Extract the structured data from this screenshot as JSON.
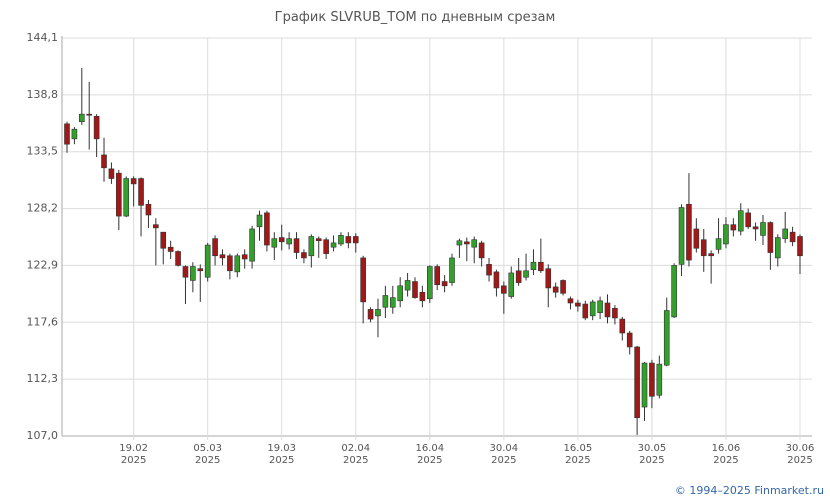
{
  "chart_data": {
    "type": "candlestick",
    "title": "График SLVRUB_TOM по дневным срезам",
    "credit": "© 1994–2025 Finmarket.ru",
    "categories": [
      null,
      null,
      null,
      null,
      null,
      null,
      null,
      null,
      null,
      "19.02\n2025",
      null,
      null,
      null,
      null,
      null,
      null,
      null,
      null,
      null,
      "05.03\n2025",
      null,
      null,
      null,
      null,
      null,
      null,
      null,
      null,
      null,
      "19.03\n2025",
      null,
      null,
      null,
      null,
      null,
      null,
      null,
      null,
      null,
      "02.04\n2025",
      null,
      null,
      null,
      null,
      null,
      null,
      null,
      null,
      null,
      "16.04\n2025",
      null,
      null,
      null,
      null,
      null,
      null,
      null,
      null,
      null,
      "30.04\n2025",
      null,
      null,
      null,
      null,
      null,
      null,
      null,
      null,
      null,
      "16.05\n2025",
      null,
      null,
      null,
      null,
      null,
      null,
      null,
      null,
      null,
      "30.05\n2025",
      null,
      null,
      null,
      null,
      null,
      null,
      null,
      null,
      null,
      "16.06\n2025",
      null,
      null,
      null,
      null,
      null,
      null,
      null,
      null,
      null,
      "30.06\n2025"
    ],
    "open": [
      136.1,
      134.7,
      136.3,
      137.0,
      136.8,
      133.2,
      131.9,
      131.5,
      127.5,
      131.0,
      131.0,
      128.6,
      126.7,
      126.0,
      124.6,
      124.2,
      122.8,
      121.5,
      122.6,
      121.8,
      125.4,
      123.9,
      123.8,
      122.3,
      123.9,
      123.3,
      126.5,
      127.8,
      124.6,
      125.5,
      124.9,
      125.4,
      124.1,
      123.8,
      125.4,
      125.3,
      124.6,
      124.9,
      125.6,
      125.6,
      123.6,
      118.8,
      118.2,
      119.0,
      119.0,
      119.6,
      120.6,
      121.4,
      120.4,
      119.8,
      122.8,
      121.4,
      121.3,
      124.8,
      125.1,
      124.6,
      125.0,
      123.0,
      122.3,
      121.0,
      120.0,
      122.4,
      121.8,
      122.5,
      123.2,
      122.6,
      120.9,
      121.5,
      119.8,
      119.4,
      119.3,
      118.2,
      118.5,
      119.4,
      118.9,
      117.9,
      116.6,
      115.3,
      109.7,
      113.8,
      110.8,
      113.6,
      118.1,
      123.0,
      128.6,
      126.3,
      125.3,
      124.0,
      124.4,
      124.9,
      126.7,
      126.1,
      127.8,
      126.5,
      125.7,
      126.9,
      123.6,
      125.4,
      126.0,
      125.6
    ],
    "high": [
      136.3,
      135.8,
      141.3,
      140.0,
      137.0,
      134.8,
      132.5,
      131.8,
      131.2,
      131.2,
      131.1,
      129.0,
      127.3,
      126.0,
      125.2,
      124.3,
      122.9,
      123.2,
      123.0,
      125.0,
      125.7,
      124.4,
      124.0,
      124.0,
      124.4,
      126.6,
      128.0,
      128.0,
      126.0,
      126.7,
      126.0,
      126.0,
      124.4,
      125.8,
      125.6,
      125.5,
      125.7,
      126.0,
      126.0,
      125.9,
      123.8,
      119.0,
      119.8,
      121.0,
      121.0,
      121.8,
      122.2,
      121.8,
      121.0,
      122.9,
      123.0,
      122.0,
      124.0,
      125.4,
      125.5,
      125.6,
      125.2,
      123.6,
      122.5,
      121.4,
      122.8,
      123.6,
      124.0,
      124.4,
      125.4,
      123.0,
      121.3,
      121.6,
      120.0,
      119.7,
      119.6,
      119.7,
      120.0,
      120.2,
      119.2,
      118.1,
      116.8,
      115.4,
      113.9,
      114.1,
      114.5,
      119.9,
      123.1,
      128.6,
      131.5,
      127.3,
      126.3,
      124.3,
      127.3,
      127.4,
      127.3,
      128.7,
      128.2,
      126.9,
      127.6,
      127.0,
      125.8,
      127.9,
      126.5,
      125.8
    ],
    "low": [
      133.4,
      134.2,
      136.0,
      133.7,
      133.0,
      130.7,
      130.5,
      126.2,
      127.4,
      128.4,
      125.6,
      126.4,
      122.9,
      123.0,
      123.5,
      122.8,
      119.3,
      120.4,
      119.5,
      121.4,
      122.9,
      122.9,
      121.6,
      121.8,
      122.6,
      122.6,
      125.2,
      124.2,
      123.4,
      124.3,
      124.4,
      123.5,
      123.1,
      122.7,
      123.6,
      123.5,
      124.2,
      124.7,
      124.5,
      124.1,
      117.5,
      117.6,
      116.2,
      118.0,
      118.4,
      119.0,
      120.0,
      119.8,
      119.0,
      119.4,
      120.6,
      120.4,
      121.0,
      123.6,
      123.3,
      123.1,
      122.8,
      121.4,
      120.0,
      118.4,
      119.8,
      121.0,
      121.5,
      122.0,
      122.2,
      119.0,
      119.9,
      120.1,
      118.8,
      118.6,
      117.8,
      117.8,
      117.9,
      117.5,
      117.4,
      115.9,
      114.6,
      107.1,
      108.4,
      109.6,
      110.5,
      113.5,
      118.0,
      121.9,
      122.8,
      124.1,
      122.3,
      121.2,
      124.0,
      124.5,
      125.6,
      125.7,
      126.3,
      125.2,
      124.8,
      122.5,
      122.8,
      125.0,
      124.7,
      122.1
    ],
    "close": [
      134.2,
      135.6,
      137.0,
      136.9,
      134.7,
      132.0,
      131.0,
      127.5,
      131.0,
      130.5,
      128.5,
      127.6,
      126.4,
      124.5,
      124.2,
      122.9,
      121.8,
      122.8,
      122.4,
      124.8,
      123.8,
      123.6,
      122.4,
      123.8,
      123.5,
      126.3,
      127.6,
      124.8,
      125.4,
      125.1,
      125.4,
      124.1,
      123.6,
      125.6,
      125.2,
      124.0,
      125.0,
      125.7,
      125.0,
      125.0,
      119.5,
      117.9,
      118.8,
      120.1,
      119.9,
      121.0,
      121.5,
      119.9,
      119.6,
      122.8,
      121.1,
      121.0,
      123.6,
      125.2,
      124.9,
      125.3,
      123.6,
      122.0,
      120.8,
      120.3,
      122.2,
      121.3,
      122.4,
      123.2,
      122.4,
      120.8,
      120.4,
      120.3,
      119.4,
      119.1,
      118.0,
      119.5,
      119.6,
      118.1,
      118.0,
      116.6,
      115.3,
      108.7,
      113.8,
      110.7,
      113.7,
      118.7,
      122.9,
      128.3,
      123.4,
      124.5,
      123.8,
      123.8,
      125.4,
      126.7,
      126.2,
      128.0,
      126.5,
      126.3,
      126.9,
      124.1,
      125.5,
      126.3,
      125.1,
      123.8
    ],
    "up_color": "#33a02c",
    "down_color": "#a01818",
    "ylim": [
      107.0,
      144.1
    ],
    "yticks": [
      {
        "value": 107.0,
        "label": "107,0"
      },
      {
        "value": 112.3,
        "label": "112,3"
      },
      {
        "value": 117.6,
        "label": "117,6"
      },
      {
        "value": 122.9,
        "label": "122,9"
      },
      {
        "value": 128.2,
        "label": "128,2"
      },
      {
        "value": 133.5,
        "label": "133,5"
      },
      {
        "value": 138.8,
        "label": "138,8"
      },
      {
        "value": 144.1,
        "label": "144,1"
      }
    ],
    "grid": true
  }
}
